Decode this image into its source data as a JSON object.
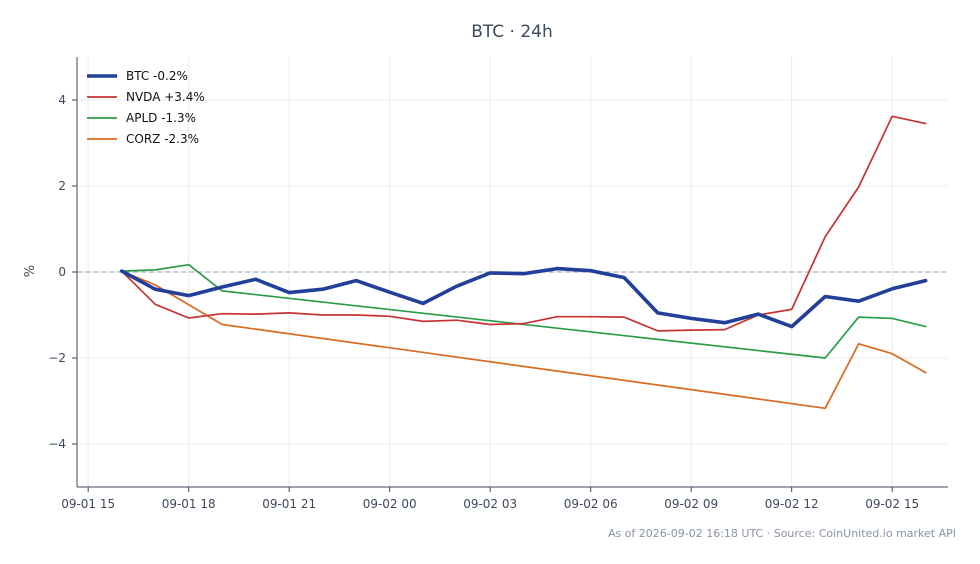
{
  "chart_data": {
    "type": "line",
    "title": "BTC · 24h",
    "ylabel": "%",
    "xlabel": "",
    "x_tick_labels": [
      "09-01 15",
      "09-01 18",
      "09-01 21",
      "09-02 00",
      "09-02 03",
      "09-02 06",
      "09-02 09",
      "09-02 12",
      "09-02 15"
    ],
    "y_ticks": [
      -4,
      -2,
      0,
      2,
      4
    ],
    "y_tick_labels": [
      "−4",
      "−2",
      "0",
      "2",
      "4"
    ],
    "xlim": [
      "2026-09-01 14:40",
      "2026-09-02 16:40"
    ],
    "ylim": [
      -5,
      5
    ],
    "grid": true,
    "zero_line": true,
    "legend_position": "top-left",
    "footer": "As of 2026-09-02 16:18 UTC · Source: CoinUnited.io market API",
    "series": [
      {
        "name": "BTC -0.2%",
        "color": "#22409a",
        "x": [
          "2026-09-01 16:00",
          "2026-09-01 17:00",
          "2026-09-01 18:00",
          "2026-09-01 19:00",
          "2026-09-01 20:00",
          "2026-09-01 21:00",
          "2026-09-01 22:00",
          "2026-09-01 23:00",
          "2026-09-02 00:00",
          "2026-09-02 01:00",
          "2026-09-02 02:00",
          "2026-09-02 03:00",
          "2026-09-02 04:00",
          "2026-09-02 05:00",
          "2026-09-02 06:00",
          "2026-09-02 07:00",
          "2026-09-02 08:00",
          "2026-09-02 09:00",
          "2026-09-02 10:00",
          "2026-09-02 11:00",
          "2026-09-02 12:00",
          "2026-09-02 13:00",
          "2026-09-02 14:00",
          "2026-09-02 15:00",
          "2026-09-02 16:00"
        ],
        "values": [
          0.02,
          -0.4,
          -0.55,
          -0.35,
          -0.17,
          -0.48,
          -0.4,
          -0.2,
          -0.47,
          -0.73,
          -0.33,
          -0.02,
          -0.04,
          0.08,
          0.03,
          -0.13,
          -0.95,
          -1.08,
          -1.18,
          -0.98,
          -1.27,
          -0.57,
          -0.68,
          -0.39,
          -0.2
        ]
      },
      {
        "name": "NVDA +3.4%",
        "color": "#c83232",
        "x": [
          "2026-09-01 16:00",
          "2026-09-01 17:00",
          "2026-09-01 18:00",
          "2026-09-01 19:00",
          "2026-09-01 20:00",
          "2026-09-01 21:00",
          "2026-09-01 22:00",
          "2026-09-01 23:00",
          "2026-09-02 00:00",
          "2026-09-02 01:00",
          "2026-09-02 02:00",
          "2026-09-02 03:00",
          "2026-09-02 04:00",
          "2026-09-02 05:00",
          "2026-09-02 06:00",
          "2026-09-02 07:00",
          "2026-09-02 08:00",
          "2026-09-02 09:00",
          "2026-09-02 10:00",
          "2026-09-02 11:00",
          "2026-09-02 12:00",
          "2026-09-02 13:00",
          "2026-09-02 14:00",
          "2026-09-02 15:00",
          "2026-09-02 16:00"
        ],
        "values": [
          0.02,
          -0.75,
          -1.07,
          -0.97,
          -0.98,
          -0.95,
          -1.0,
          -1.0,
          -1.03,
          -1.15,
          -1.12,
          -1.22,
          -1.2,
          -1.04,
          -1.04,
          -1.05,
          -1.37,
          -1.35,
          -1.34,
          -1.0,
          -0.87,
          0.82,
          1.98,
          3.62,
          3.45
        ]
      },
      {
        "name": "APLD -1.3%",
        "color": "#2a9d48",
        "x": [
          "2026-09-01 16:00",
          "2026-09-01 17:00",
          "2026-09-01 18:00",
          "2026-09-01 19:00",
          "2026-09-02 13:00",
          "2026-09-02 14:00",
          "2026-09-02 15:00",
          "2026-09-02 16:00"
        ],
        "values": [
          0.02,
          0.05,
          0.17,
          -0.44,
          -2.0,
          -1.05,
          -1.08,
          -1.27
        ]
      },
      {
        "name": "CORZ -2.3%",
        "color": "#d96a22",
        "x": [
          "2026-09-01 16:00",
          "2026-09-01 17:00",
          "2026-09-01 19:00",
          "2026-09-02 13:00",
          "2026-09-02 14:00",
          "2026-09-02 15:00",
          "2026-09-02 16:00"
        ],
        "values": [
          0.02,
          -0.3,
          -1.22,
          -3.17,
          -1.67,
          -1.9,
          -2.34
        ]
      }
    ]
  }
}
